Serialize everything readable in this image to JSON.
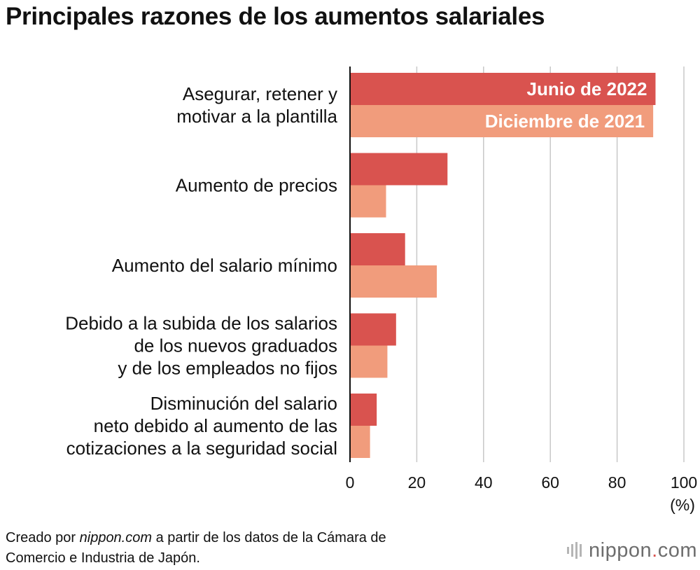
{
  "title": "Principales razones de los aumentos salariales",
  "chart_data": {
    "type": "bar",
    "orientation": "horizontal",
    "title": "Principales razones de los aumentos salariales",
    "categories": [
      [
        "Asegurar, retener y",
        "motivar a la plantilla"
      ],
      [
        "Aumento de precios"
      ],
      [
        "Aumento del salario mínimo"
      ],
      [
        "Debido a la subida de los salarios",
        "de los nuevos graduados",
        "y de los empleados no fijos"
      ],
      [
        "Disminución del salario",
        "neto debido al aumento de las",
        "cotizaciones a la seguridad social"
      ]
    ],
    "series": [
      {
        "name": "Junio de 2022",
        "color": "#d9534f",
        "values": [
          91.5,
          29.2,
          16.5,
          13.8,
          8.0
        ]
      },
      {
        "name": "Diciembre de 2021",
        "color": "#f19c7c",
        "values": [
          90.8,
          10.8,
          26.0,
          11.2,
          6.0
        ]
      }
    ],
    "xlim": [
      0,
      100
    ],
    "xticks": [
      0,
      20,
      40,
      60,
      80,
      100
    ],
    "xlabel": "(%)",
    "grid": true,
    "legend": "inside-first-bars"
  },
  "source": {
    "prefix": "Creado por ",
    "site": "nippon.com",
    "suffix": " a partir de los datos de la Cámara de",
    "line2": "Comercio e Industria de Japón."
  },
  "logo": {
    "name": "nippon",
    "dot": ".",
    "tld": "com"
  }
}
